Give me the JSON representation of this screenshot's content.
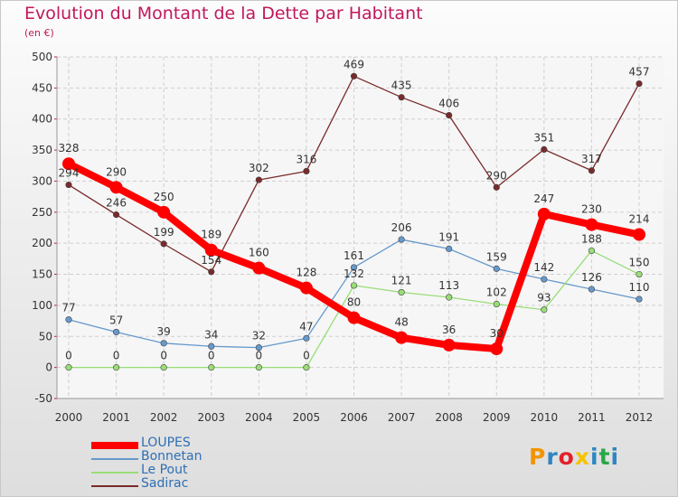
{
  "page": {
    "title": "Evolution du Montant de la Dette par Habitant",
    "subtitle": "(en €)"
  },
  "logo": {
    "letters": [
      "P",
      "r",
      "o",
      "x",
      "i",
      "t",
      "i"
    ],
    "colors": [
      "#f29400",
      "#2e86c1",
      "#e2212a",
      "#f5c400",
      "#2e86c1",
      "#27a845",
      "#2e86c1"
    ]
  },
  "chart_data": {
    "type": "line",
    "title": "Evolution du Montant de la Dette par Habitant",
    "ylabel": "(en €)",
    "x": [
      "2000",
      "2001",
      "2002",
      "2003",
      "2004",
      "2005",
      "2006",
      "2007",
      "2008",
      "2009",
      "2010",
      "2011",
      "2012"
    ],
    "ylim": [
      -50,
      500
    ],
    "yticks": [
      "-50",
      "0",
      "50",
      "100",
      "150",
      "200",
      "250",
      "300",
      "350",
      "400",
      "450",
      "500"
    ],
    "grid": true,
    "legend_position": "bottom-left",
    "series": [
      {
        "name": "LOUPES",
        "color": "#ff0000",
        "values": [
          328,
          290,
          250,
          189,
          160,
          128,
          80,
          48,
          36,
          30,
          247,
          230,
          214
        ],
        "labels": [
          "328",
          "290",
          "250",
          "189",
          "160",
          "128",
          "80",
          "48",
          "36",
          "30",
          "247",
          "230",
          "214"
        ]
      },
      {
        "name": "Bonnetan",
        "color": "#6699cc",
        "values": [
          77,
          57,
          39,
          34,
          32,
          47,
          161,
          206,
          191,
          159,
          142,
          126,
          110
        ],
        "labels": [
          "77",
          "57",
          "39",
          "34",
          "32",
          "47",
          "161",
          "206",
          "191",
          "159",
          "142",
          "126",
          "110"
        ]
      },
      {
        "name": "Le Pout",
        "color": "#99dd77",
        "values": [
          0,
          0,
          0,
          0,
          0,
          0,
          132,
          121,
          113,
          102,
          93,
          188,
          150
        ],
        "labels": [
          "0",
          "0",
          "0",
          "0",
          "0",
          "0",
          "132",
          "121",
          "113",
          "102",
          "93",
          "188",
          "150"
        ]
      },
      {
        "name": "Sadirac",
        "color": "#7a2a2a",
        "values": [
          294,
          246,
          199,
          154,
          302,
          316,
          469,
          435,
          406,
          290,
          351,
          317,
          457
        ],
        "labels": [
          "294",
          "246",
          "199",
          "154",
          "302",
          "316",
          "469",
          "435",
          "406",
          "290",
          "351",
          "317",
          "457"
        ]
      }
    ]
  }
}
